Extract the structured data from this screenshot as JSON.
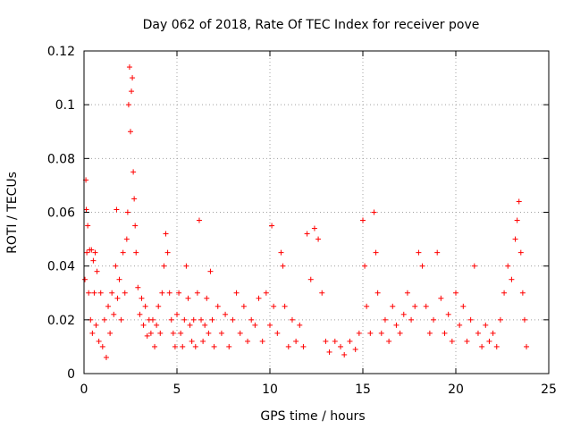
{
  "chart_data": {
    "type": "scatter",
    "title": "Day 062 of 2018, Rate Of TEC Index for receiver pove",
    "xlabel": "GPS time / hours",
    "ylabel": "ROTI / TECUs",
    "xlim": [
      0,
      25
    ],
    "ylim": [
      0,
      0.12
    ],
    "x_ticks": [
      0,
      5,
      10,
      15,
      20,
      25
    ],
    "x_tick_labels": [
      "0",
      "5",
      "10",
      "15",
      "20",
      "25"
    ],
    "y_ticks": [
      0,
      0.02,
      0.04,
      0.06,
      0.08,
      0.1,
      0.12
    ],
    "y_tick_labels": [
      "0",
      "0.02",
      "0.04",
      "0.06",
      "0.08",
      "0.1",
      "0.12"
    ],
    "grid": true,
    "marker": "plus",
    "color": "#ff0000",
    "series": [
      {
        "name": "ROTI",
        "points": [
          [
            0.05,
            0.035
          ],
          [
            0.1,
            0.072
          ],
          [
            0.12,
            0.061
          ],
          [
            0.15,
            0.045
          ],
          [
            0.2,
            0.055
          ],
          [
            0.25,
            0.03
          ],
          [
            0.3,
            0.046
          ],
          [
            0.35,
            0.02
          ],
          [
            0.4,
            0.046
          ],
          [
            0.45,
            0.015
          ],
          [
            0.5,
            0.042
          ],
          [
            0.55,
            0.03
          ],
          [
            0.6,
            0.045
          ],
          [
            0.65,
            0.018
          ],
          [
            0.7,
            0.038
          ],
          [
            0.8,
            0.012
          ],
          [
            0.9,
            0.03
          ],
          [
            1.0,
            0.01
          ],
          [
            1.1,
            0.02
          ],
          [
            1.2,
            0.006
          ],
          [
            1.3,
            0.025
          ],
          [
            1.4,
            0.015
          ],
          [
            1.5,
            0.03
          ],
          [
            1.6,
            0.022
          ],
          [
            1.7,
            0.04
          ],
          [
            1.75,
            0.061
          ],
          [
            1.8,
            0.028
          ],
          [
            1.9,
            0.035
          ],
          [
            2.0,
            0.02
          ],
          [
            2.1,
            0.045
          ],
          [
            2.2,
            0.03
          ],
          [
            2.3,
            0.05
          ],
          [
            2.35,
            0.06
          ],
          [
            2.4,
            0.1
          ],
          [
            2.45,
            0.114
          ],
          [
            2.5,
            0.09
          ],
          [
            2.55,
            0.105
          ],
          [
            2.6,
            0.11
          ],
          [
            2.65,
            0.075
          ],
          [
            2.7,
            0.065
          ],
          [
            2.75,
            0.055
          ],
          [
            2.8,
            0.045
          ],
          [
            2.9,
            0.032
          ],
          [
            3.0,
            0.022
          ],
          [
            3.1,
            0.028
          ],
          [
            3.2,
            0.018
          ],
          [
            3.3,
            0.025
          ],
          [
            3.4,
            0.014
          ],
          [
            3.5,
            0.02
          ],
          [
            3.6,
            0.015
          ],
          [
            3.7,
            0.02
          ],
          [
            3.8,
            0.01
          ],
          [
            3.9,
            0.018
          ],
          [
            4.0,
            0.025
          ],
          [
            4.1,
            0.015
          ],
          [
            4.2,
            0.03
          ],
          [
            4.3,
            0.04
          ],
          [
            4.4,
            0.052
          ],
          [
            4.5,
            0.045
          ],
          [
            4.6,
            0.03
          ],
          [
            4.7,
            0.02
          ],
          [
            4.8,
            0.015
          ],
          [
            4.9,
            0.01
          ],
          [
            5.0,
            0.022
          ],
          [
            5.1,
            0.03
          ],
          [
            5.2,
            0.015
          ],
          [
            5.3,
            0.01
          ],
          [
            5.4,
            0.02
          ],
          [
            5.5,
            0.04
          ],
          [
            5.6,
            0.028
          ],
          [
            5.7,
            0.018
          ],
          [
            5.8,
            0.012
          ],
          [
            5.9,
            0.02
          ],
          [
            6.0,
            0.01
          ],
          [
            6.1,
            0.03
          ],
          [
            6.2,
            0.057
          ],
          [
            6.3,
            0.02
          ],
          [
            6.4,
            0.012
          ],
          [
            6.5,
            0.018
          ],
          [
            6.6,
            0.028
          ],
          [
            6.7,
            0.015
          ],
          [
            6.8,
            0.038
          ],
          [
            6.9,
            0.02
          ],
          [
            7.0,
            0.01
          ],
          [
            7.2,
            0.025
          ],
          [
            7.4,
            0.015
          ],
          [
            7.6,
            0.022
          ],
          [
            7.8,
            0.01
          ],
          [
            8.0,
            0.02
          ],
          [
            8.2,
            0.03
          ],
          [
            8.4,
            0.015
          ],
          [
            8.6,
            0.025
          ],
          [
            8.8,
            0.012
          ],
          [
            9.0,
            0.02
          ],
          [
            9.2,
            0.018
          ],
          [
            9.4,
            0.028
          ],
          [
            9.6,
            0.012
          ],
          [
            9.8,
            0.03
          ],
          [
            10.0,
            0.018
          ],
          [
            10.1,
            0.055
          ],
          [
            10.2,
            0.025
          ],
          [
            10.4,
            0.015
          ],
          [
            10.6,
            0.045
          ],
          [
            10.7,
            0.04
          ],
          [
            10.8,
            0.025
          ],
          [
            11.0,
            0.01
          ],
          [
            11.2,
            0.02
          ],
          [
            11.4,
            0.012
          ],
          [
            11.6,
            0.018
          ],
          [
            11.8,
            0.01
          ],
          [
            12.0,
            0.052
          ],
          [
            12.2,
            0.035
          ],
          [
            12.4,
            0.054
          ],
          [
            12.6,
            0.05
          ],
          [
            12.8,
            0.03
          ],
          [
            13.0,
            0.012
          ],
          [
            13.2,
            0.008
          ],
          [
            13.5,
            0.012
          ],
          [
            13.8,
            0.01
          ],
          [
            14.0,
            0.007
          ],
          [
            14.3,
            0.012
          ],
          [
            14.6,
            0.009
          ],
          [
            14.8,
            0.015
          ],
          [
            15.0,
            0.057
          ],
          [
            15.1,
            0.04
          ],
          [
            15.2,
            0.025
          ],
          [
            15.4,
            0.015
          ],
          [
            15.6,
            0.06
          ],
          [
            15.7,
            0.045
          ],
          [
            15.8,
            0.03
          ],
          [
            16.0,
            0.015
          ],
          [
            16.2,
            0.02
          ],
          [
            16.4,
            0.012
          ],
          [
            16.6,
            0.025
          ],
          [
            16.8,
            0.018
          ],
          [
            17.0,
            0.015
          ],
          [
            17.2,
            0.022
          ],
          [
            17.4,
            0.03
          ],
          [
            17.6,
            0.02
          ],
          [
            17.8,
            0.025
          ],
          [
            18.0,
            0.045
          ],
          [
            18.2,
            0.04
          ],
          [
            18.4,
            0.025
          ],
          [
            18.6,
            0.015
          ],
          [
            18.8,
            0.02
          ],
          [
            19.0,
            0.045
          ],
          [
            19.2,
            0.028
          ],
          [
            19.4,
            0.015
          ],
          [
            19.6,
            0.022
          ],
          [
            19.8,
            0.012
          ],
          [
            20.0,
            0.03
          ],
          [
            20.2,
            0.018
          ],
          [
            20.4,
            0.025
          ],
          [
            20.6,
            0.012
          ],
          [
            20.8,
            0.02
          ],
          [
            21.0,
            0.04
          ],
          [
            21.2,
            0.015
          ],
          [
            21.4,
            0.01
          ],
          [
            21.6,
            0.018
          ],
          [
            21.8,
            0.012
          ],
          [
            22.0,
            0.015
          ],
          [
            22.2,
            0.01
          ],
          [
            22.4,
            0.02
          ],
          [
            22.6,
            0.03
          ],
          [
            22.8,
            0.04
          ],
          [
            23.0,
            0.035
          ],
          [
            23.2,
            0.05
          ],
          [
            23.3,
            0.057
          ],
          [
            23.4,
            0.064
          ],
          [
            23.5,
            0.045
          ],
          [
            23.6,
            0.03
          ],
          [
            23.7,
            0.02
          ],
          [
            23.8,
            0.01
          ]
        ]
      }
    ]
  }
}
